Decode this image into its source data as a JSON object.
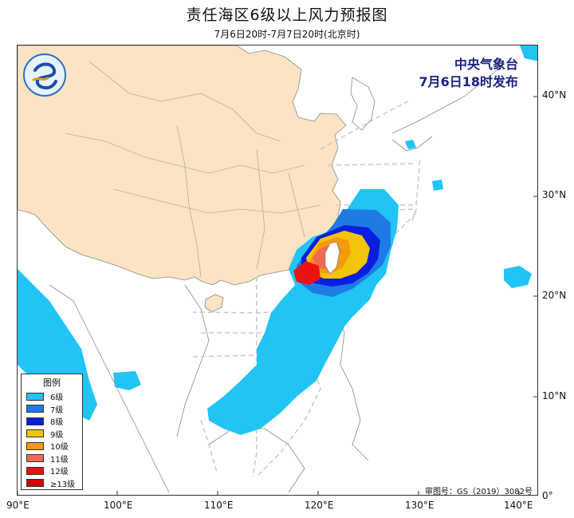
{
  "title": "责任海区6级以上风力预报图",
  "subtitle": "7月6日20时-7月7日20时(北京时)",
  "issuer": {
    "org": "中央气象台",
    "time": "7月6日18时发布"
  },
  "legend": {
    "title": "图例",
    "items": [
      {
        "label": "6级",
        "color": "#22c3f5"
      },
      {
        "label": "7级",
        "color": "#1e7be6"
      },
      {
        "label": "8级",
        "color": "#0a1ee0"
      },
      {
        "label": "9级",
        "color": "#f2c40a"
      },
      {
        "label": "10级",
        "color": "#f59a0c"
      },
      {
        "label": "11级",
        "color": "#f06a50"
      },
      {
        "label": "12级",
        "color": "#ee1111"
      },
      {
        "label": "≥13级",
        "color": "#c80a0a"
      }
    ]
  },
  "axes": {
    "x_ticks": [
      "90°E",
      "100°E",
      "110°E",
      "120°E",
      "130°E",
      "140°E"
    ],
    "y_ticks": [
      "40°N",
      "30°N",
      "20°N",
      "10°N",
      "0°"
    ]
  },
  "review_number": "审图号：GS（2019）3082号",
  "colors": {
    "land_china": "#fbe3c3",
    "land_other": "#ffffff",
    "sea": "#ffffff",
    "boundary": "#888888",
    "sea_area_dash": "#c8c8c8"
  }
}
